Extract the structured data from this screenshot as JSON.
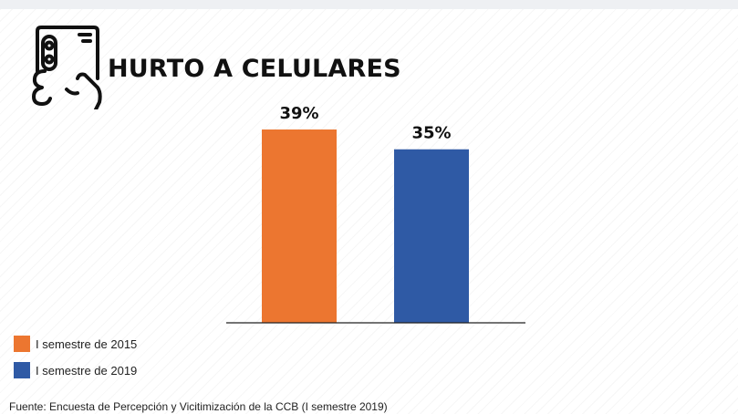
{
  "title": "HURTO A CELULARES",
  "icon": "hand-holding-phone-icon",
  "chart_data": {
    "type": "bar",
    "categories": [
      "I semestre de 2015",
      "I semestre de 2019"
    ],
    "values": [
      39,
      35
    ],
    "value_labels": [
      "39%",
      "35%"
    ],
    "colors": [
      "#ec7630",
      "#2f5aa5"
    ],
    "ylim": [
      0,
      39
    ],
    "grid": false,
    "legend_position": "bottom-left",
    "xlabel": "",
    "ylabel": ""
  },
  "legend": [
    {
      "label": "I semestre de 2015",
      "color": "#ec7630"
    },
    {
      "label": "I semestre de 2019",
      "color": "#2f5aa5"
    }
  ],
  "source": "Fuente: Encuesta de Percepción y Vicitimización  de la CCB (I semestre 2019)"
}
